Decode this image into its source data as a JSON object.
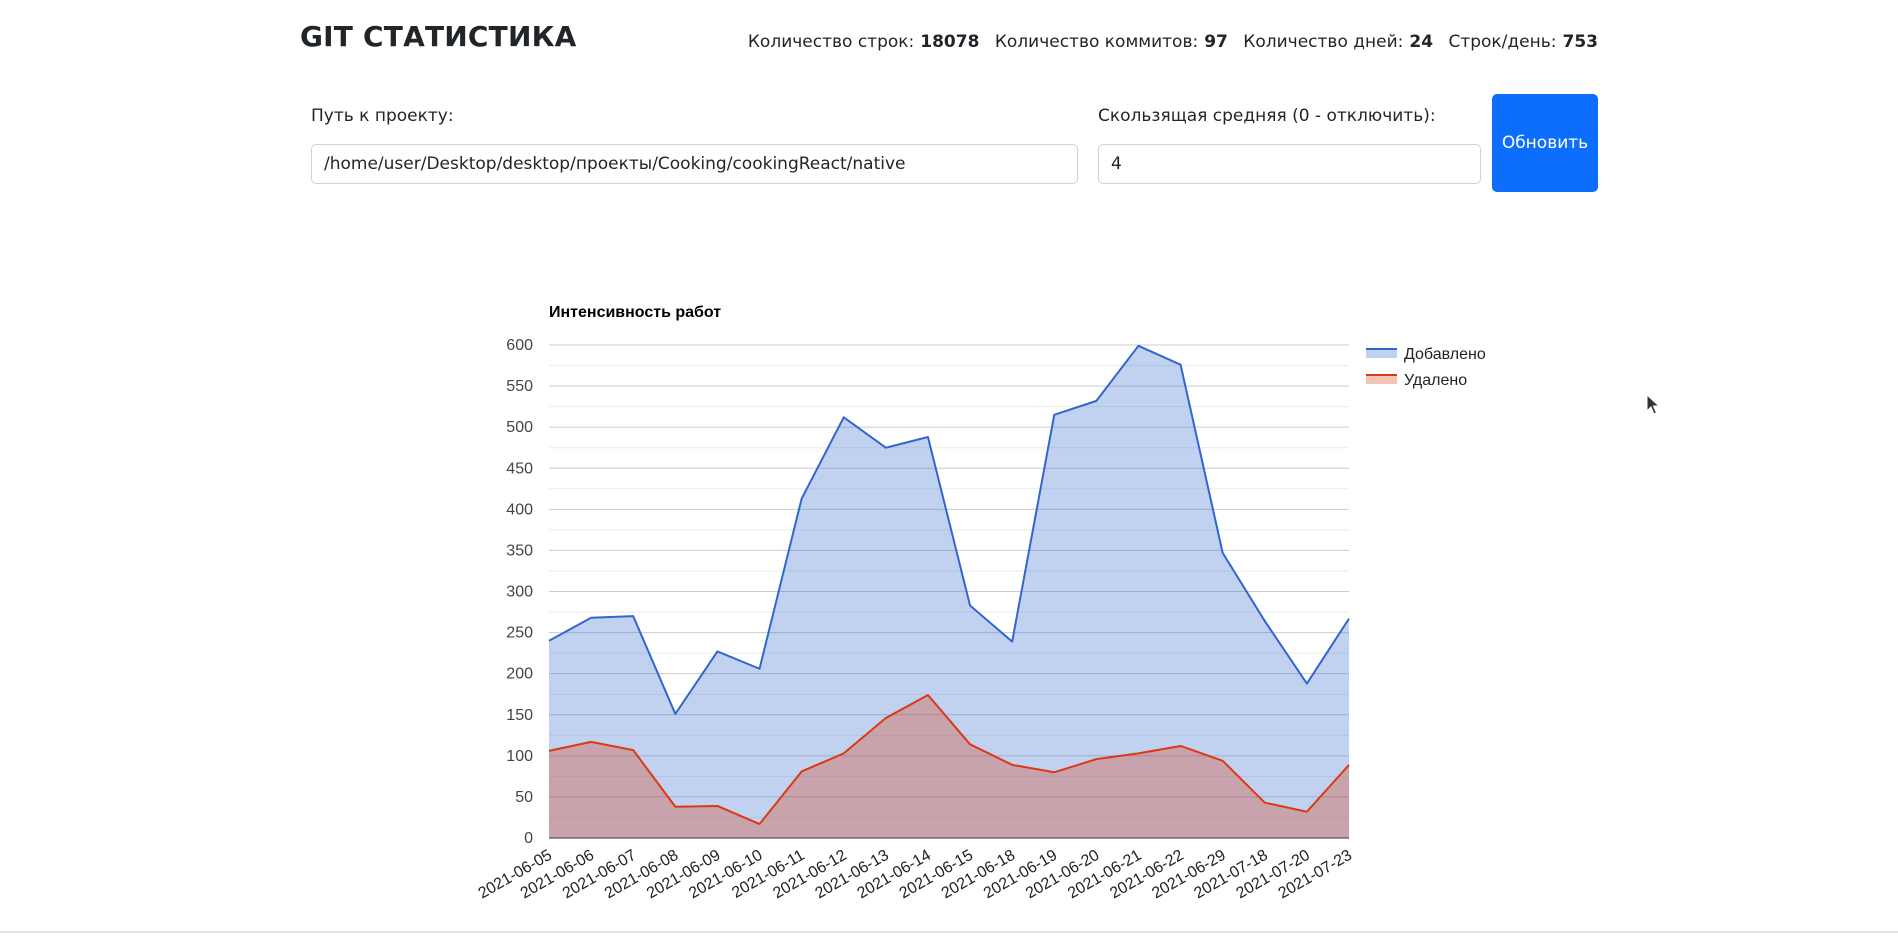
{
  "header": {
    "title": "GIT СТАТИСТИКА",
    "stats": {
      "lines_label": "Количество строк:",
      "lines_value": "18078",
      "commits_label": "Количество коммитов:",
      "commits_value": "97",
      "days_label": "Количество дней:",
      "days_value": "24",
      "per_day_label": "Строк/день:",
      "per_day_value": "753"
    }
  },
  "form": {
    "path_label": "Путь к проекту:",
    "path_value": "/home/user/Desktop/desktop/проекты/Cooking/cookingReact/native",
    "ma_label": "Скользящая средняя (0 - отключить):",
    "ma_value": "4",
    "refresh_label": "Обновить"
  },
  "chart_data": {
    "type": "area",
    "title": "Интенсивность работ",
    "xlabel": "",
    "ylabel": "",
    "ylim": [
      0,
      600
    ],
    "yticks": [
      0,
      50,
      100,
      150,
      200,
      250,
      300,
      350,
      400,
      450,
      500,
      550,
      600
    ],
    "grid": true,
    "legend_position": "right",
    "x": [
      "2021-06-05",
      "2021-06-06",
      "2021-06-07",
      "2021-06-08",
      "2021-06-09",
      "2021-06-10",
      "2021-06-11",
      "2021-06-12",
      "2021-06-13",
      "2021-06-14",
      "2021-06-15",
      "2021-06-18",
      "2021-06-19",
      "2021-06-20",
      "2021-06-21",
      "2021-06-22",
      "2021-06-29",
      "2021-07-18",
      "2021-07-20",
      "2021-07-23"
    ],
    "series": [
      {
        "name": "Добавлено",
        "color": "#3366cc",
        "values": [
          240,
          268,
          270,
          151,
          227,
          206,
          413,
          512,
          475,
          488,
          283,
          239,
          515,
          532,
          599,
          576,
          347,
          264,
          188,
          267
        ]
      },
      {
        "name": "Удалено",
        "color": "#dc3912",
        "values": [
          106,
          117,
          107,
          38,
          39,
          17,
          81,
          103,
          146,
          174,
          114,
          89,
          80,
          96,
          103,
          112,
          94,
          43,
          32,
          89
        ]
      }
    ]
  }
}
